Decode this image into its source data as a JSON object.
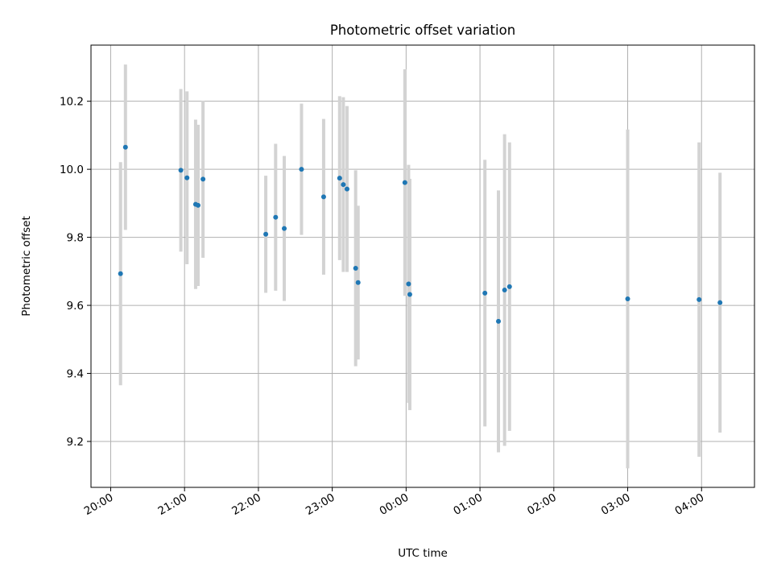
{
  "chart_data": {
    "type": "scatter",
    "title": "Photometric offset variation",
    "xlabel": "UTC time",
    "ylabel": "Photometric offset",
    "x_ticks": [
      "20:00",
      "21:00",
      "22:00",
      "23:00",
      "00:00",
      "01:00",
      "02:00",
      "03:00",
      "04:00"
    ],
    "y_ticks": [
      "9.2",
      "9.4",
      "9.6",
      "9.8",
      "10.0",
      "10.2"
    ],
    "xlim": [
      "19:44",
      "04:43"
    ],
    "ylim": [
      9.065,
      10.365
    ],
    "grid": true,
    "colors": {
      "point": "#1f77b4",
      "errorbar": "#d3d3d3",
      "grid": "#b0b0b0"
    },
    "points": [
      {
        "x": "20:08",
        "y": 9.693,
        "ylow": 9.365,
        "yhigh": 10.021
      },
      {
        "x": "20:12",
        "y": 10.065,
        "ylow": 9.822,
        "yhigh": 10.308
      },
      {
        "x": "20:57",
        "y": 9.997,
        "ylow": 9.758,
        "yhigh": 10.236
      },
      {
        "x": "21:02",
        "y": 9.975,
        "ylow": 9.721,
        "yhigh": 10.229
      },
      {
        "x": "21:09",
        "y": 9.897,
        "ylow": 9.648,
        "yhigh": 10.146
      },
      {
        "x": "21:11",
        "y": 9.894,
        "ylow": 9.657,
        "yhigh": 10.131
      },
      {
        "x": "21:15",
        "y": 9.971,
        "ylow": 9.74,
        "yhigh": 10.202
      },
      {
        "x": "22:06",
        "y": 9.809,
        "ylow": 9.637,
        "yhigh": 9.981
      },
      {
        "x": "22:14",
        "y": 9.859,
        "ylow": 9.643,
        "yhigh": 10.075
      },
      {
        "x": "22:21",
        "y": 9.826,
        "ylow": 9.613,
        "yhigh": 10.039
      },
      {
        "x": "22:35",
        "y": 10.0,
        "ylow": 9.807,
        "yhigh": 10.193
      },
      {
        "x": "22:53",
        "y": 9.919,
        "ylow": 9.69,
        "yhigh": 10.148
      },
      {
        "x": "23:06",
        "y": 9.974,
        "ylow": 9.733,
        "yhigh": 10.215
      },
      {
        "x": "23:09",
        "y": 9.955,
        "ylow": 9.698,
        "yhigh": 10.212
      },
      {
        "x": "23:12",
        "y": 9.942,
        "ylow": 9.698,
        "yhigh": 10.186
      },
      {
        "x": "23:19",
        "y": 9.709,
        "ylow": 9.421,
        "yhigh": 9.997
      },
      {
        "x": "23:21",
        "y": 9.667,
        "ylow": 9.441,
        "yhigh": 9.893
      },
      {
        "x": "23:59",
        "y": 9.961,
        "ylow": 9.628,
        "yhigh": 10.294
      },
      {
        "x": "00:02",
        "y": 9.663,
        "ylow": 9.313,
        "yhigh": 10.013
      },
      {
        "x": "00:03",
        "y": 9.632,
        "ylow": 9.292,
        "yhigh": 9.972
      },
      {
        "x": "01:04",
        "y": 9.636,
        "ylow": 9.244,
        "yhigh": 10.028
      },
      {
        "x": "01:15",
        "y": 9.553,
        "ylow": 9.168,
        "yhigh": 9.938
      },
      {
        "x": "01:20",
        "y": 9.645,
        "ylow": 9.187,
        "yhigh": 10.103
      },
      {
        "x": "01:24",
        "y": 9.655,
        "ylow": 9.231,
        "yhigh": 10.079
      },
      {
        "x": "03:00",
        "y": 9.619,
        "ylow": 9.121,
        "yhigh": 10.117
      },
      {
        "x": "03:58",
        "y": 9.617,
        "ylow": 9.155,
        "yhigh": 10.079
      },
      {
        "x": "04:15",
        "y": 9.608,
        "ylow": 9.226,
        "yhigh": 9.99
      }
    ]
  }
}
